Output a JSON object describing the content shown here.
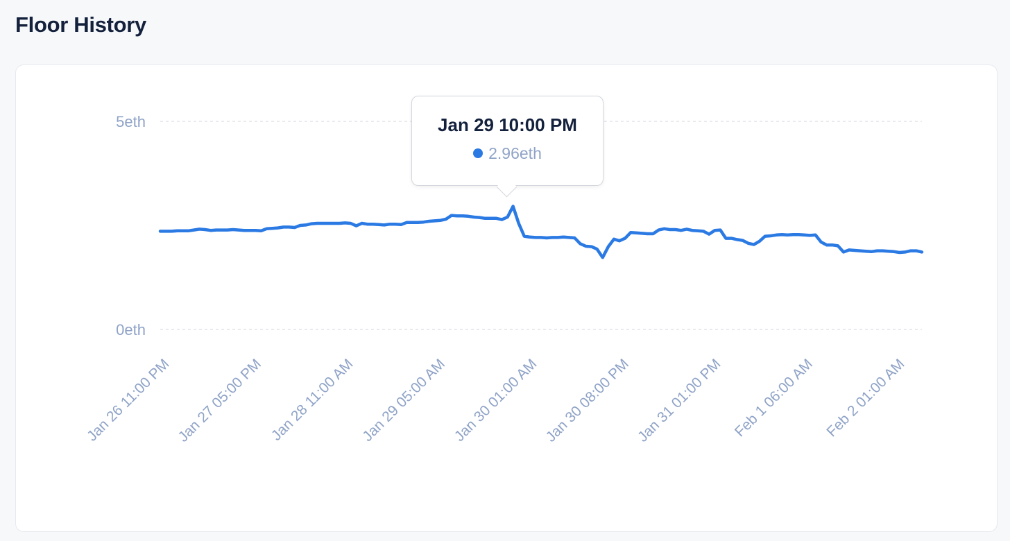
{
  "page": {
    "title": "Floor History"
  },
  "tooltip": {
    "title": "Jan 29 10:00 PM",
    "value": "2.96eth"
  },
  "colors": {
    "line": "#2b7ae4",
    "grid": "#d9dee8",
    "axis_text": "#8fa3c7",
    "title": "#14213d"
  },
  "chart_data": {
    "type": "line",
    "title": "",
    "xlabel": "",
    "ylabel": "",
    "ylim": [
      0,
      5
    ],
    "yticks": [
      {
        "value": 0,
        "label": "0eth"
      },
      {
        "value": 5,
        "label": "5eth"
      }
    ],
    "grid": "horizontal dashed",
    "xtick_labels": [
      "Jan 26 11:00 PM",
      "Jan 27 05:00 PM",
      "Jan 28 11:00 AM",
      "Jan 29 05:00 AM",
      "Jan 30 01:00 AM",
      "Jan 30 08:00 PM",
      "Jan 31 01:00 PM",
      "Feb  1 06:00 AM",
      "Feb  2 01:00 AM"
    ],
    "series": [
      {
        "values": [
          2.36,
          2.36,
          2.36,
          2.37,
          2.37,
          2.37,
          2.39,
          2.41,
          2.4,
          2.38,
          2.39,
          2.39,
          2.39,
          2.4,
          2.39,
          2.38,
          2.38,
          2.38,
          2.37,
          2.42,
          2.43,
          2.44,
          2.46,
          2.46,
          2.45,
          2.5,
          2.51,
          2.54,
          2.55,
          2.55,
          2.55,
          2.55,
          2.55,
          2.56,
          2.55,
          2.49,
          2.55,
          2.53,
          2.53,
          2.52,
          2.51,
          2.53,
          2.53,
          2.52,
          2.57,
          2.57,
          2.57,
          2.58,
          2.6,
          2.61,
          2.62,
          2.65,
          2.74,
          2.73,
          2.73,
          2.72,
          2.7,
          2.69,
          2.67,
          2.67,
          2.67,
          2.64,
          2.7,
          2.96,
          2.55,
          2.24,
          2.22,
          2.21,
          2.21,
          2.2,
          2.21,
          2.21,
          2.22,
          2.21,
          2.2,
          2.06,
          2.0,
          1.99,
          1.93,
          1.73,
          1.99,
          2.17,
          2.13,
          2.19,
          2.33,
          2.32,
          2.31,
          2.3,
          2.3,
          2.39,
          2.42,
          2.4,
          2.4,
          2.38,
          2.41,
          2.38,
          2.37,
          2.36,
          2.29,
          2.38,
          2.39,
          2.19,
          2.19,
          2.16,
          2.14,
          2.07,
          2.04,
          2.12,
          2.24,
          2.25,
          2.27,
          2.28,
          2.27,
          2.28,
          2.28,
          2.27,
          2.26,
          2.27,
          2.1,
          2.03,
          2.03,
          2.01,
          1.86,
          1.91,
          1.9,
          1.89,
          1.88,
          1.87,
          1.89,
          1.89,
          1.88,
          1.87,
          1.85,
          1.86,
          1.89,
          1.89,
          1.86
        ]
      }
    ]
  }
}
